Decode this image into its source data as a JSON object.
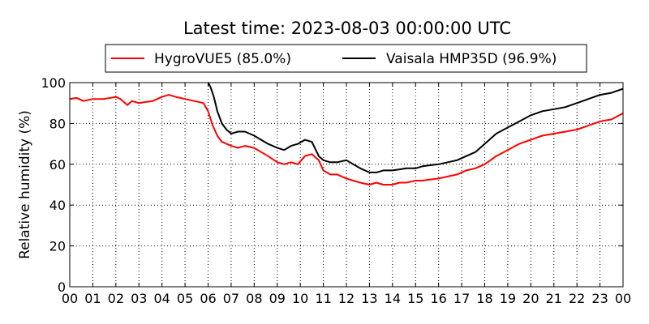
{
  "chart_data": {
    "type": "line",
    "title": "Latest time: 2023-08-03 00:00:00 UTC",
    "xlabel": "",
    "ylabel": "Relative humidity (%)",
    "xlim": [
      0,
      24
    ],
    "ylim": [
      0,
      100
    ],
    "grid": true,
    "legend_position": "top",
    "x_tick_labels": [
      "00",
      "01",
      "02",
      "03",
      "04",
      "05",
      "06",
      "07",
      "08",
      "09",
      "10",
      "11",
      "12",
      "13",
      "14",
      "15",
      "16",
      "17",
      "18",
      "19",
      "20",
      "21",
      "22",
      "23",
      "00"
    ],
    "y_tick_labels": [
      "0",
      "20",
      "40",
      "60",
      "80",
      "100"
    ],
    "series": [
      {
        "name": "HygroVUE5 (85.0%)",
        "color": "#ff0000",
        "x": [
          0,
          0.3,
          0.6,
          1.0,
          1.5,
          2.0,
          2.2,
          2.5,
          2.7,
          3.0,
          3.3,
          3.6,
          4.0,
          4.3,
          4.6,
          5.0,
          5.4,
          5.8,
          6.0,
          6.2,
          6.4,
          6.6,
          6.8,
          7.0,
          7.3,
          7.6,
          8.0,
          8.3,
          8.6,
          9.0,
          9.3,
          9.6,
          9.9,
          10.2,
          10.5,
          10.8,
          11.0,
          11.3,
          11.6,
          12.0,
          12.3,
          12.6,
          13.0,
          13.3,
          13.6,
          14.0,
          14.3,
          14.6,
          15.0,
          15.3,
          15.6,
          16.0,
          16.4,
          16.8,
          17.2,
          17.6,
          18.0,
          18.5,
          19.0,
          19.5,
          20.0,
          20.5,
          21.0,
          21.5,
          22.0,
          22.5,
          23.0,
          23.5,
          24.0
        ],
        "y": [
          92,
          92.5,
          91,
          92,
          92,
          93,
          92,
          89,
          91,
          90,
          90.5,
          91,
          93,
          94,
          93,
          92,
          91,
          90,
          86,
          79,
          74,
          71,
          70,
          69,
          68,
          69,
          68,
          66,
          64,
          61,
          60,
          61,
          60,
          64,
          65,
          62,
          57,
          55,
          55,
          53,
          52,
          51,
          50,
          51,
          50,
          50,
          51,
          51,
          52,
          52,
          52.5,
          53,
          54,
          55,
          57,
          58,
          60,
          64,
          67,
          70,
          72,
          74,
          75,
          76,
          77,
          79,
          81,
          82,
          85
        ]
      },
      {
        "name": "Vaisala HMP35D (96.9%)",
        "color": "#000000",
        "x": [
          6.0,
          6.1,
          6.25,
          6.4,
          6.6,
          6.8,
          7.0,
          7.3,
          7.6,
          8.0,
          8.3,
          8.6,
          9.0,
          9.3,
          9.6,
          9.9,
          10.2,
          10.5,
          10.8,
          11.0,
          11.3,
          11.6,
          12.0,
          12.3,
          12.6,
          13.0,
          13.3,
          13.6,
          14.0,
          14.3,
          14.6,
          15.0,
          15.3,
          15.6,
          16.0,
          16.4,
          16.8,
          17.2,
          17.6,
          18.0,
          18.5,
          19.0,
          19.5,
          20.0,
          20.5,
          21.0,
          21.5,
          22.0,
          22.5,
          23.0,
          23.5,
          24.0
        ],
        "y": [
          100,
          98,
          93,
          86,
          80,
          77,
          75,
          76,
          76,
          74,
          72,
          70,
          68,
          67,
          69,
          70,
          72,
          71,
          64,
          62,
          61,
          61,
          62,
          60,
          58,
          56,
          56,
          57,
          57,
          57.5,
          58,
          58,
          59,
          59.5,
          60,
          61,
          62,
          64,
          66,
          70,
          75,
          78,
          81,
          84,
          86,
          87,
          88,
          90,
          92,
          94,
          95,
          97
        ]
      }
    ]
  }
}
